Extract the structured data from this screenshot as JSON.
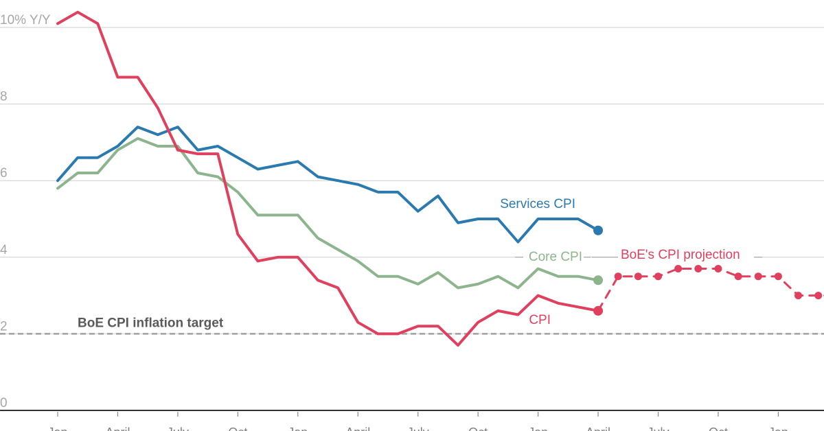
{
  "chart_data": {
    "type": "line",
    "title": "",
    "ylabel": "% Y/Y",
    "ylim": [
      0,
      10
    ],
    "y_ticks": [
      {
        "value": 10,
        "label": "10% Y/Y"
      },
      {
        "value": 8,
        "label": "8"
      },
      {
        "value": 6,
        "label": "6"
      },
      {
        "value": 4,
        "label": "4"
      },
      {
        "value": 2,
        "label": "2"
      },
      {
        "value": 0,
        "label": "0"
      }
    ],
    "x_ticks": [
      {
        "index": 0,
        "label": "Jan"
      },
      {
        "index": 3,
        "label": "April"
      },
      {
        "index": 6,
        "label": "July"
      },
      {
        "index": 9,
        "label": "Oct"
      },
      {
        "index": 12,
        "label": "Jan"
      },
      {
        "index": 15,
        "label": "April"
      },
      {
        "index": 18,
        "label": "July"
      },
      {
        "index": 21,
        "label": "Oct"
      },
      {
        "index": 24,
        "label": "Jan"
      },
      {
        "index": 27,
        "label": "April"
      },
      {
        "index": 30,
        "label": "July"
      },
      {
        "index": 33,
        "label": "Oct"
      },
      {
        "index": 36,
        "label": "Jan"
      }
    ],
    "grid": true,
    "series": [
      {
        "name": "Services CPI",
        "color": "#2a7ab0",
        "style": "solid",
        "x": [
          0,
          1,
          2,
          3,
          4,
          5,
          6,
          7,
          8,
          9,
          10,
          11,
          12,
          13,
          14,
          15,
          16,
          17,
          18,
          19,
          20,
          21,
          22,
          23,
          24,
          25,
          26,
          27
        ],
        "values": [
          6.0,
          6.6,
          6.6,
          6.9,
          7.4,
          7.2,
          7.4,
          6.8,
          6.9,
          6.6,
          6.3,
          6.4,
          6.5,
          6.1,
          6.0,
          5.9,
          5.7,
          5.7,
          5.2,
          5.6,
          4.9,
          5.0,
          5.0,
          4.4,
          5.0,
          5.0,
          5.0,
          4.7
        ]
      },
      {
        "name": "Core CPI",
        "color": "#8db58d",
        "style": "solid",
        "x": [
          0,
          1,
          2,
          3,
          4,
          5,
          6,
          7,
          8,
          9,
          10,
          11,
          12,
          13,
          14,
          15,
          16,
          17,
          18,
          19,
          20,
          21,
          22,
          23,
          24,
          25,
          26,
          27
        ],
        "values": [
          5.8,
          6.2,
          6.2,
          6.8,
          7.1,
          6.9,
          6.9,
          6.2,
          6.1,
          5.7,
          5.1,
          5.1,
          5.1,
          4.5,
          4.2,
          3.9,
          3.5,
          3.5,
          3.3,
          3.6,
          3.2,
          3.3,
          3.5,
          3.2,
          3.7,
          3.5,
          3.5,
          3.4
        ]
      },
      {
        "name": "CPI",
        "color": "#e0405e",
        "style": "solid",
        "x": [
          0,
          1,
          2,
          3,
          4,
          5,
          6,
          7,
          8,
          9,
          10,
          11,
          12,
          13,
          14,
          15,
          16,
          17,
          18,
          19,
          20,
          21,
          22,
          23,
          24,
          25,
          26,
          27
        ],
        "values": [
          10.1,
          10.4,
          10.1,
          8.7,
          8.7,
          7.9,
          6.8,
          6.7,
          6.7,
          4.6,
          3.9,
          4.0,
          4.0,
          3.4,
          3.2,
          2.3,
          2.0,
          2.0,
          2.2,
          2.2,
          1.7,
          2.3,
          2.6,
          2.5,
          3.0,
          2.8,
          2.7,
          2.6
        ]
      },
      {
        "name": "BoE's CPI projection",
        "color": "#e0405e",
        "style": "dashed",
        "x": [
          27,
          28,
          29,
          30,
          31,
          32,
          33,
          34,
          35,
          36,
          37,
          38,
          39
        ],
        "values": [
          2.6,
          3.5,
          3.5,
          3.5,
          3.7,
          3.7,
          3.7,
          3.5,
          3.5,
          3.5,
          3.0,
          3.0,
          3.0
        ]
      }
    ],
    "reference_lines": [
      {
        "value": 2,
        "label": "BoE CPI inflation target",
        "color": "#a0a0a0",
        "style": "dashed"
      }
    ],
    "x_range": [
      0,
      39
    ]
  }
}
